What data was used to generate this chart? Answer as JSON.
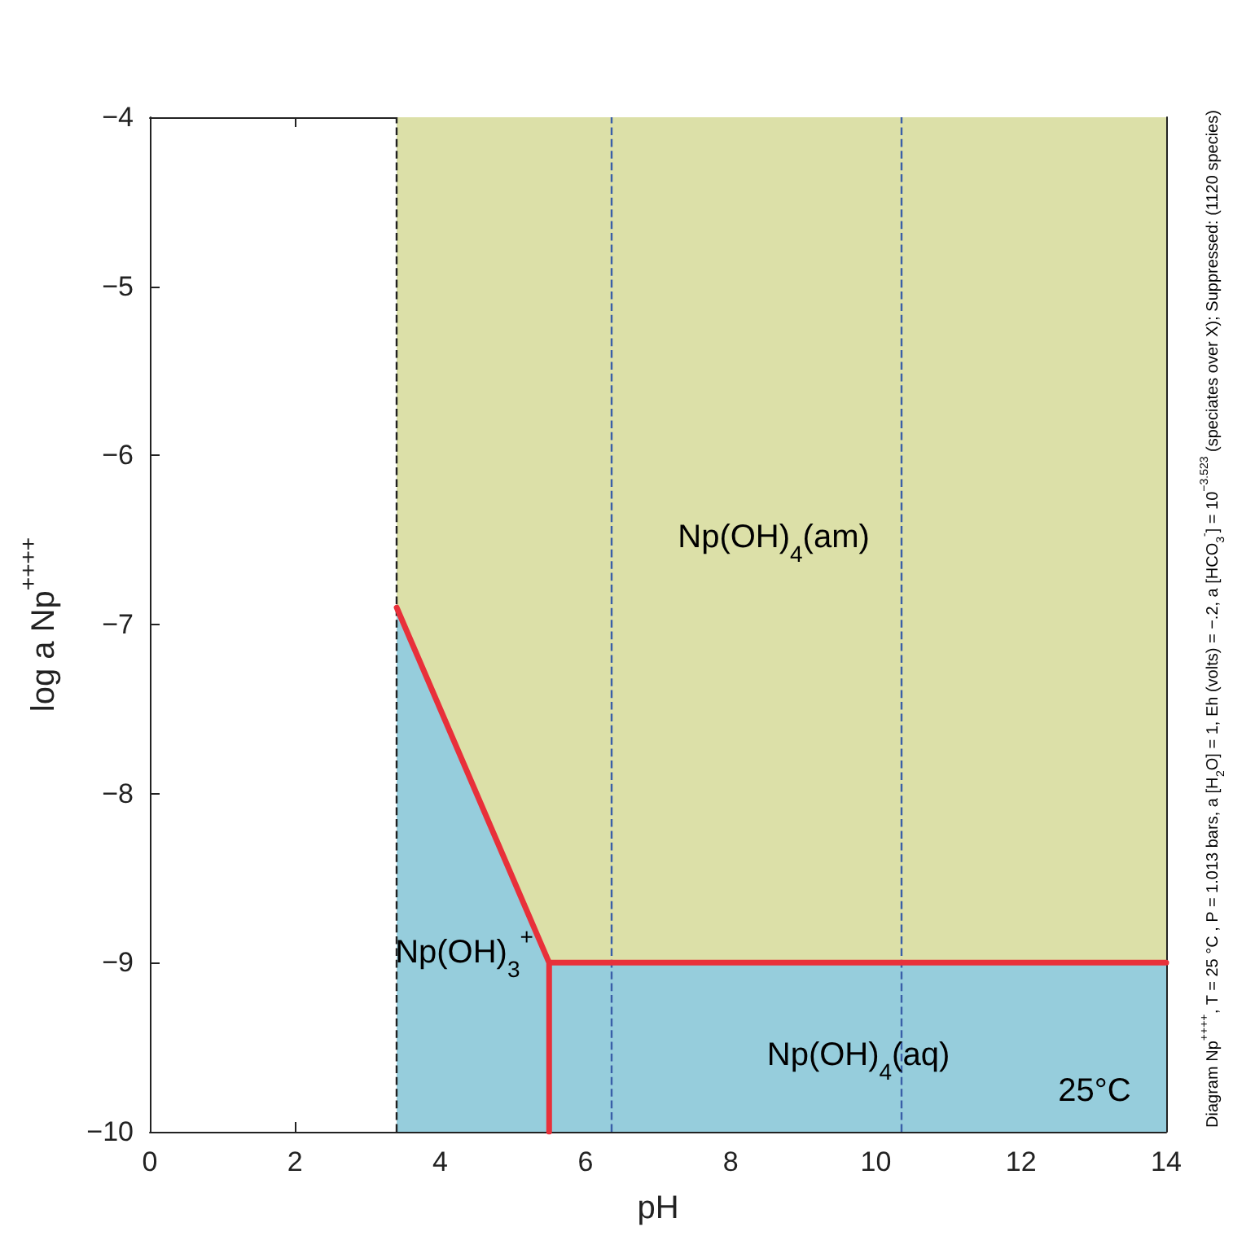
{
  "chart_data": {
    "type": "line",
    "xlabel": "pH",
    "ylabel": "log a Np$^{++++}$",
    "xlim": [
      0,
      14
    ],
    "ylim": [
      -10,
      -4
    ],
    "xticks": [
      0,
      2,
      4,
      6,
      8,
      10,
      12,
      14
    ],
    "yticks": [
      -10,
      -9,
      -8,
      -7,
      -6,
      -5,
      -4
    ],
    "grid": false,
    "marker": "none",
    "line_style": "solid",
    "series": [
      {
        "type": "area",
        "color": "#dce0a8",
        "x": [
          3.4,
          5.5,
          14
        ],
        "values": [
          -6.9,
          -9,
          -9
        ]
      },
      {
        "color": "#e8303a",
        "x": [
          3.4,
          5.5,
          5.5,
          5.5,
          14
        ],
        "values": [
          -6.9,
          -9,
          -10,
          -9,
          -9
        ]
      }
    ],
    "bands": [
      {
        "axis": "x",
        "from": 3.4,
        "to": 14,
        "color": "#96cddc"
      }
    ],
    "ref_lines": [
      {
        "axis": "x",
        "value": 3.4,
        "color": "#222222",
        "line_style": "dashed"
      },
      {
        "axis": "x",
        "value": 6.35,
        "color": "#3a5fa8",
        "line_style": "dashed"
      },
      {
        "axis": "x",
        "value": 10.35,
        "color": "#3a5fa8",
        "line_style": "dashed"
      }
    ],
    "annotations": [
      "Np(OH)$_{4}$(am)",
      "Np(OH)$_{3}$$^{+}$",
      "Np(OH)$_{4}$(aq)",
      "25°C",
      "Diagram Np$^{++++}$, T = 25 °C , P = 1.013 bars, a [H$_{2}$O] = 1, Eh (volts) = −.2, a [HCO$_{3}$$^{-}$] = 10$^{−3.523}$ (speciates over X); Suppressed: (1120 species)"
    ]
  }
}
